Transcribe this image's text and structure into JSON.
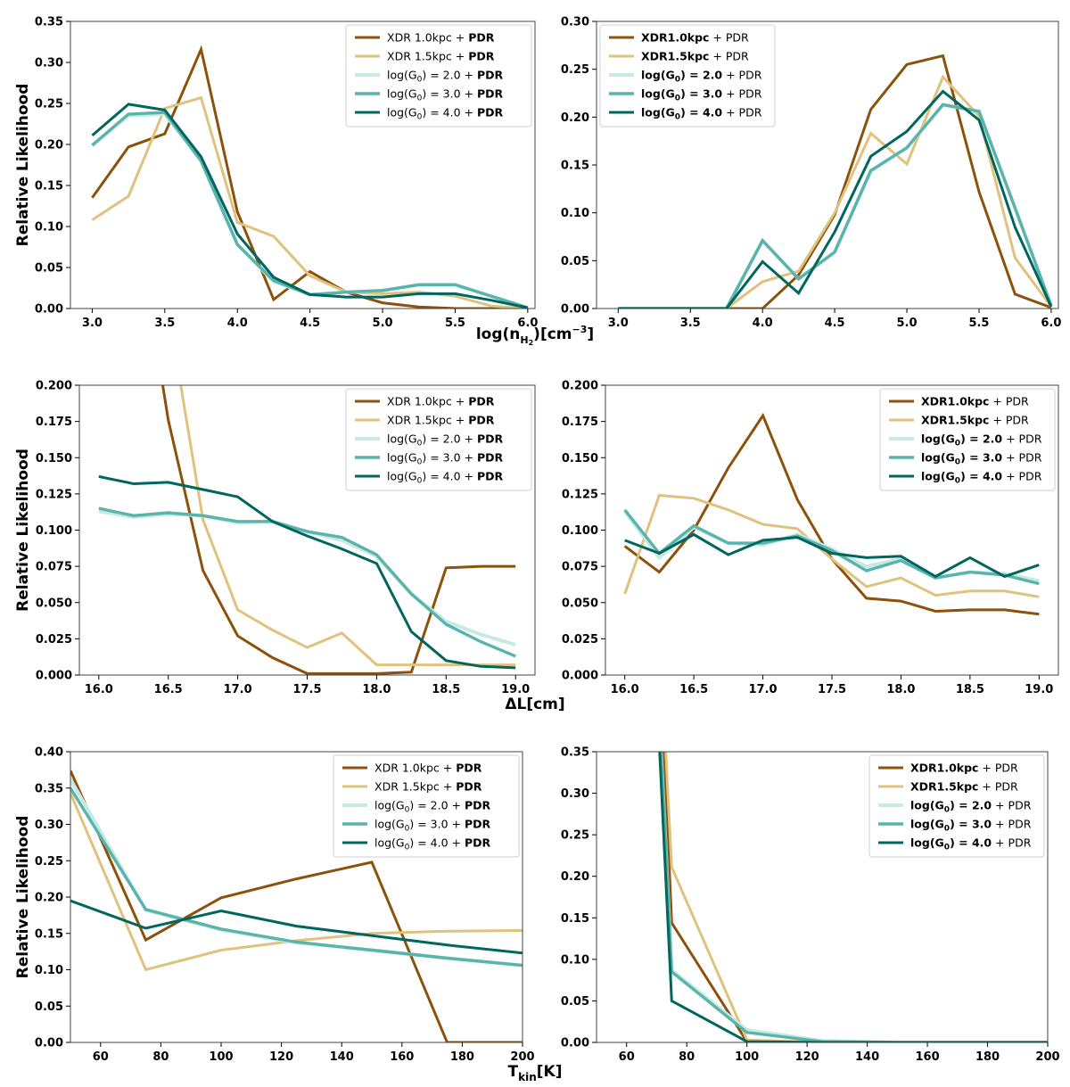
{
  "colors": {
    "xdr10": "#8c510a",
    "xdr15": "#dfc27d",
    "g2": "#c7eae5",
    "g3": "#5ab4ac",
    "g4": "#01665e"
  },
  "row_xlabels": [
    "log(n_H2)[cm^-3]",
    "ΔL[cm]",
    "T_kin[K]"
  ],
  "chart_data": [
    {
      "type": "line",
      "panel": "row1-left",
      "legend": "top-right",
      "legend_style": "plain-prefix-bold-PDR",
      "ylabel": "Relative Likelihood",
      "xlabel": "log(n_H2)[cm^-3]",
      "xlim": [
        2.85,
        6.05
      ],
      "ylim": [
        0,
        0.35
      ],
      "xticks": [
        "3.0",
        "3.5",
        "4.0",
        "4.5",
        "5.0",
        "5.5",
        "6.0"
      ],
      "yticks": [
        "0.00",
        "0.05",
        "0.10",
        "0.15",
        "0.20",
        "0.25",
        "0.30",
        "0.35"
      ],
      "x": [
        3.0,
        3.25,
        3.5,
        3.75,
        4.0,
        4.25,
        4.5,
        4.75,
        5.0,
        5.25,
        5.5,
        5.75,
        6.0
      ],
      "series": [
        {
          "key": "xdr10",
          "name": "XDR 1.0kpc + PDR",
          "values": [
            0.135,
            0.197,
            0.213,
            0.316,
            0.118,
            0.011,
            0.045,
            0.02,
            0.007,
            0.002,
            0.0,
            0.0,
            0.0
          ]
        },
        {
          "key": "xdr15",
          "name": "XDR 1.5kpc + PDR",
          "values": [
            0.108,
            0.137,
            0.244,
            0.257,
            0.105,
            0.088,
            0.04,
            0.02,
            0.018,
            0.02,
            0.015,
            0.003,
            0.0
          ]
        },
        {
          "key": "g2",
          "name": "log(G0) = 2.0 + PDR",
          "values": [
            0.199,
            0.235,
            0.237,
            0.18,
            0.078,
            0.033,
            0.017,
            0.02,
            0.022,
            0.029,
            0.029,
            0.015,
            0.001
          ]
        },
        {
          "key": "g3",
          "name": "log(G0) = 3.0 + PDR",
          "values": [
            0.199,
            0.237,
            0.239,
            0.18,
            0.078,
            0.034,
            0.017,
            0.02,
            0.022,
            0.029,
            0.029,
            0.015,
            0.001
          ]
        },
        {
          "key": "g4",
          "name": "log(G0) = 4.0 + PDR",
          "values": [
            0.211,
            0.249,
            0.242,
            0.185,
            0.091,
            0.038,
            0.017,
            0.014,
            0.014,
            0.018,
            0.018,
            0.01,
            0.001
          ]
        }
      ]
    },
    {
      "type": "line",
      "panel": "row1-right",
      "legend": "top-left",
      "legend_style": "bold-prefix-plain-PDR",
      "ylabel": "",
      "xlabel": "",
      "xlim": [
        2.85,
        6.05
      ],
      "ylim": [
        0,
        0.3
      ],
      "xticks": [
        "3.0",
        "3.5",
        "4.0",
        "4.5",
        "5.0",
        "5.5",
        "6.0"
      ],
      "yticks": [
        "0.00",
        "0.05",
        "0.10",
        "0.15",
        "0.20",
        "0.25",
        "0.30"
      ],
      "x": [
        3.0,
        3.25,
        3.5,
        3.75,
        4.0,
        4.25,
        4.5,
        4.75,
        5.0,
        5.25,
        5.5,
        5.75,
        6.0
      ],
      "series": [
        {
          "key": "xdr10",
          "name": "XDR1.0kpc + PDR",
          "values": [
            0,
            0,
            0,
            0,
            0.0,
            0.035,
            0.098,
            0.208,
            0.255,
            0.264,
            0.122,
            0.015,
            0.001
          ]
        },
        {
          "key": "xdr15",
          "name": "XDR1.5kpc + PDR",
          "values": [
            0,
            0,
            0,
            0,
            0.028,
            0.039,
            0.1,
            0.183,
            0.151,
            0.242,
            0.201,
            0.053,
            0.002
          ]
        },
        {
          "key": "g2",
          "name": "log(G0) = 2.0 + PDR",
          "values": [
            0,
            0,
            0,
            0,
            0.071,
            0.031,
            0.059,
            0.144,
            0.168,
            0.213,
            0.206,
            0.105,
            0.003
          ]
        },
        {
          "key": "g3",
          "name": "log(G0) = 3.0 + PDR",
          "values": [
            0,
            0,
            0,
            0,
            0.071,
            0.031,
            0.059,
            0.144,
            0.168,
            0.213,
            0.206,
            0.105,
            0.003
          ]
        },
        {
          "key": "g4",
          "name": "log(G0) = 4.0 + PDR",
          "values": [
            0,
            0,
            0,
            0,
            0.049,
            0.016,
            0.08,
            0.159,
            0.185,
            0.227,
            0.197,
            0.085,
            0.002
          ]
        }
      ]
    },
    {
      "type": "line",
      "panel": "row2-left",
      "legend": "top-right",
      "legend_style": "plain-prefix-bold-PDR",
      "ylabel": "Relative Likelihood",
      "xlabel": "ΔL[cm]",
      "xlim": [
        15.86,
        19.14
      ],
      "ylim": [
        0,
        0.2
      ],
      "xticks": [
        "16.0",
        "16.5",
        "17.0",
        "17.5",
        "18.0",
        "18.5",
        "19.0"
      ],
      "yticks": [
        "0.000",
        "0.025",
        "0.050",
        "0.075",
        "0.100",
        "0.125",
        "0.150",
        "0.175",
        "0.200"
      ],
      "x": [
        16.0,
        16.25,
        16.5,
        16.75,
        17.0,
        17.25,
        17.5,
        17.75,
        18.0,
        18.25,
        18.5,
        18.75,
        19.0
      ],
      "series": [
        {
          "key": "xdr10",
          "name": "XDR 1.0kpc + PDR",
          "values": [
            null,
            null,
            0.176,
            0.072,
            0.027,
            0.012,
            0.001,
            0.001,
            0.001,
            0.002,
            0.074,
            0.075,
            0.075
          ],
          "pre": [
            [
              16.46,
              0.2
            ]
          ]
        },
        {
          "key": "xdr15",
          "name": "XDR 1.5kpc + PDR",
          "values": [
            null,
            null,
            null,
            0.107,
            0.045,
            0.031,
            0.019,
            0.029,
            0.007,
            0.007,
            0.007,
            0.007,
            0.007
          ],
          "pre": [
            [
              16.59,
              0.2
            ]
          ]
        },
        {
          "key": "g2",
          "name": "log(G0) = 2.0 + PDR",
          "values": [
            0.113,
            0.109,
            0.111,
            0.11,
            0.105,
            0.106,
            0.099,
            0.093,
            0.082,
            0.056,
            0.037,
            0.028,
            0.021
          ]
        },
        {
          "key": "g3",
          "name": "log(G0) = 3.0 + PDR",
          "values": [
            0.115,
            0.11,
            0.112,
            0.11,
            0.106,
            0.106,
            0.099,
            0.095,
            0.083,
            0.056,
            0.035,
            0.023,
            0.013
          ]
        },
        {
          "key": "g4",
          "name": "log(G0) = 4.0 + PDR",
          "values": [
            0.137,
            0.132,
            0.133,
            0.128,
            0.123,
            0.106,
            0.096,
            0.087,
            0.077,
            0.03,
            0.01,
            0.006,
            0.005
          ]
        }
      ]
    },
    {
      "type": "line",
      "panel": "row2-right",
      "legend": "top-right",
      "legend_style": "bold-prefix-plain-PDR",
      "ylabel": "",
      "xlabel": "",
      "xlim": [
        15.86,
        19.14
      ],
      "ylim": [
        0,
        0.2
      ],
      "xticks": [
        "16.0",
        "16.5",
        "17.0",
        "17.5",
        "18.0",
        "18.5",
        "19.0"
      ],
      "yticks": [
        "0.000",
        "0.025",
        "0.050",
        "0.075",
        "0.100",
        "0.125",
        "0.150",
        "0.175",
        "0.200"
      ],
      "x": [
        16.0,
        16.25,
        16.5,
        16.75,
        17.0,
        17.25,
        17.5,
        17.75,
        18.0,
        18.25,
        18.5,
        18.75,
        19.0
      ],
      "series": [
        {
          "key": "xdr10",
          "name": "XDR1.0kpc + PDR",
          "values": [
            0.089,
            0.071,
            0.1,
            0.143,
            0.179,
            0.121,
            0.08,
            0.053,
            0.051,
            0.044,
            0.045,
            0.045,
            0.042
          ]
        },
        {
          "key": "xdr15",
          "name": "XDR1.5kpc + PDR",
          "values": [
            0.056,
            0.124,
            0.122,
            0.114,
            0.104,
            0.101,
            0.08,
            0.061,
            0.067,
            0.055,
            0.058,
            0.058,
            0.054
          ]
        },
        {
          "key": "g2",
          "name": "log(G0) = 2.0 + PDR",
          "values": [
            0.113,
            0.081,
            0.102,
            0.091,
            0.09,
            0.097,
            0.087,
            0.075,
            0.08,
            0.067,
            0.071,
            0.07,
            0.065
          ]
        },
        {
          "key": "g3",
          "name": "log(G0) = 3.0 + PDR",
          "values": [
            0.114,
            0.084,
            0.103,
            0.091,
            0.091,
            0.096,
            0.086,
            0.072,
            0.079,
            0.067,
            0.071,
            0.069,
            0.063
          ]
        },
        {
          "key": "g4",
          "name": "log(G0) = 4.0 + PDR",
          "values": [
            0.093,
            0.084,
            0.097,
            0.083,
            0.093,
            0.095,
            0.084,
            0.081,
            0.082,
            0.068,
            0.081,
            0.068,
            0.076
          ]
        }
      ]
    },
    {
      "type": "line",
      "panel": "row3-left",
      "legend": "top-right",
      "legend_style": "plain-prefix-bold-PDR",
      "ylabel": "Relative Likelihood",
      "xlabel": "T_kin[K]",
      "xlim": [
        50,
        200
      ],
      "ylim": [
        0,
        0.4
      ],
      "xticks": [
        "60",
        "80",
        "100",
        "120",
        "140",
        "160",
        "180",
        "200"
      ],
      "yticks": [
        "0.00",
        "0.05",
        "0.10",
        "0.15",
        "0.20",
        "0.25",
        "0.30",
        "0.35",
        "0.40"
      ],
      "x": [
        50,
        75,
        100,
        125,
        150,
        175,
        200
      ],
      "series": [
        {
          "key": "xdr10",
          "name": "XDR 1.0kpc + PDR",
          "values": [
            0.374,
            0.141,
            0.199,
            0.225,
            0.248,
            0.0,
            0.0
          ]
        },
        {
          "key": "xdr15",
          "name": "XDR 1.5kpc + PDR",
          "values": [
            0.343,
            0.1,
            0.127,
            0.14,
            0.15,
            0.153,
            0.154
          ]
        },
        {
          "key": "g2",
          "name": "log(G0) = 2.0 + PDR",
          "values": [
            0.362,
            0.182,
            0.155,
            0.137,
            0.127,
            0.116,
            0.106
          ]
        },
        {
          "key": "g3",
          "name": "log(G0) = 3.0 + PDR",
          "values": [
            0.35,
            0.183,
            0.156,
            0.138,
            0.127,
            0.116,
            0.106
          ]
        },
        {
          "key": "g4",
          "name": "log(G0) = 4.0 + PDR",
          "values": [
            0.195,
            0.157,
            0.181,
            0.16,
            0.147,
            0.134,
            0.123
          ]
        }
      ]
    },
    {
      "type": "line",
      "panel": "row3-right",
      "legend": "top-right",
      "legend_style": "bold-prefix-plain-PDR",
      "ylabel": "",
      "xlabel": "",
      "xlim": [
        50,
        200
      ],
      "ylim": [
        0,
        0.35
      ],
      "xticks": [
        "60",
        "80",
        "100",
        "120",
        "140",
        "160",
        "180",
        "200"
      ],
      "yticks": [
        "0.00",
        "0.05",
        "0.10",
        "0.15",
        "0.20",
        "0.25",
        "0.30",
        "0.35"
      ],
      "x": [
        50,
        75,
        100,
        125,
        150,
        175,
        200
      ],
      "series": [
        {
          "key": "xdr10",
          "name": "XDR1.0kpc + PDR",
          "values": [
            null,
            0.144,
            0.001,
            0.0,
            0.0,
            0.0,
            0.0
          ],
          "pre": [
            [
              72.5,
              0.35
            ]
          ]
        },
        {
          "key": "xdr15",
          "name": "XDR1.5kpc + PDR",
          "values": [
            null,
            0.211,
            0.003,
            0.0,
            0.0,
            0.0,
            0.0
          ],
          "pre": [
            [
              73.0,
              0.35
            ]
          ]
        },
        {
          "key": "g2",
          "name": "log(G0) = 2.0 + PDR",
          "values": [
            null,
            0.087,
            0.015,
            0.002,
            0.0,
            0.0,
            0.0
          ],
          "pre": [
            [
              71.5,
              0.35
            ]
          ]
        },
        {
          "key": "g3",
          "name": "log(G0) = 3.0 + PDR",
          "values": [
            null,
            0.085,
            0.012,
            0.001,
            0.0,
            0.0,
            0.0
          ],
          "pre": [
            [
              71.5,
              0.35
            ]
          ]
        },
        {
          "key": "g4",
          "name": "log(G0) = 4.0 + PDR",
          "values": [
            null,
            0.05,
            0.001,
            0.0,
            0.0,
            0.0,
            0.0
          ],
          "pre": [
            [
              71.0,
              0.35
            ]
          ]
        }
      ]
    }
  ]
}
